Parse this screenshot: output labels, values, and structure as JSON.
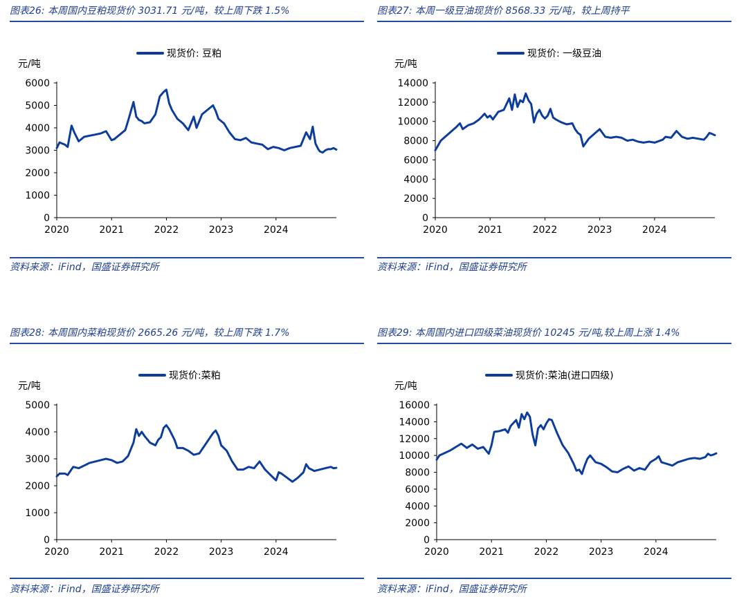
{
  "colors": {
    "accent": "#0d3d9c",
    "title": "#1f3f8f",
    "rule": "#1f4e9e"
  },
  "source_label": "资料来源：iFind，国盛证券研究所",
  "chart_data": [
    {
      "type": "line",
      "title": "图表26:  本周国内豆粕现货价 3031.71 元/吨，较上周下跌 1.5%",
      "ylabel": "元/吨",
      "legend": "现货价:  豆粕",
      "ylim": [
        0,
        6000
      ],
      "yticks": [
        0,
        1000,
        2000,
        3000,
        4000,
        5000,
        6000
      ],
      "xticks": [
        "2020",
        "2021",
        "2022",
        "2023",
        "2024"
      ],
      "xlim": [
        2020,
        2025.1
      ],
      "series": [
        {
          "name": "现货价: 豆粕",
          "x": [
            2020.0,
            2020.05,
            2020.15,
            2020.2,
            2020.27,
            2020.32,
            2020.4,
            2020.5,
            2020.6,
            2020.7,
            2020.8,
            2020.9,
            2021.0,
            2021.05,
            2021.15,
            2021.25,
            2021.3,
            2021.4,
            2021.45,
            2021.5,
            2021.55,
            2021.6,
            2021.7,
            2021.8,
            2021.88,
            2021.95,
            2022.0,
            2022.05,
            2022.1,
            2022.15,
            2022.2,
            2022.3,
            2022.4,
            2022.5,
            2022.55,
            2022.6,
            2022.65,
            2022.75,
            2022.85,
            2022.9,
            2022.95,
            2023.05,
            2023.15,
            2023.25,
            2023.35,
            2023.45,
            2023.55,
            2023.65,
            2023.75,
            2023.85,
            2023.95,
            2024.05,
            2024.15,
            2024.25,
            2024.35,
            2024.45,
            2024.55,
            2024.62,
            2024.67,
            2024.72,
            2024.77,
            2024.8,
            2024.85,
            2024.9,
            2024.95,
            2025.0,
            2025.05,
            2025.1
          ],
          "values": [
            3100,
            3350,
            3250,
            3150,
            4100,
            3800,
            3400,
            3600,
            3650,
            3700,
            3750,
            3850,
            3450,
            3500,
            3700,
            3900,
            4300,
            5150,
            4500,
            4350,
            4300,
            4200,
            4250,
            4600,
            5400,
            5600,
            5700,
            5100,
            4800,
            4600,
            4400,
            4200,
            3900,
            4500,
            4000,
            4300,
            4600,
            4800,
            5000,
            4750,
            4400,
            4200,
            3800,
            3500,
            3450,
            3550,
            3350,
            3300,
            3250,
            3050,
            3150,
            3100,
            3000,
            3100,
            3150,
            3200,
            3800,
            3500,
            4050,
            3300,
            3050,
            2950,
            2900,
            3000,
            3050,
            3050,
            3100,
            3031
          ]
        }
      ]
    },
    {
      "type": "line",
      "title": "图表27:  本周一级豆油现货价 8568.33 元/吨，较上周持平",
      "ylabel": "元/吨",
      "legend": "现货价:  一级豆油",
      "ylim": [
        0,
        14000
      ],
      "yticks": [
        0,
        2000,
        4000,
        6000,
        8000,
        10000,
        12000,
        14000
      ],
      "xticks": [
        "2020",
        "2021",
        "2022",
        "2023",
        "2024"
      ],
      "xlim": [
        2020,
        2025.1
      ],
      "series": [
        {
          "name": "现货价: 一级豆油",
          "x": [
            2020.0,
            2020.05,
            2020.1,
            2020.2,
            2020.3,
            2020.38,
            2020.45,
            2020.5,
            2020.6,
            2020.7,
            2020.8,
            2020.9,
            2020.95,
            2021.0,
            2021.05,
            2021.15,
            2021.25,
            2021.35,
            2021.4,
            2021.45,
            2021.5,
            2021.55,
            2021.6,
            2021.65,
            2021.7,
            2021.75,
            2021.8,
            2021.85,
            2021.9,
            2021.95,
            2022.0,
            2022.05,
            2022.1,
            2022.15,
            2022.2,
            2022.3,
            2022.4,
            2022.5,
            2022.55,
            2022.6,
            2022.65,
            2022.7,
            2022.8,
            2022.9,
            2023.0,
            2023.1,
            2023.2,
            2023.3,
            2023.4,
            2023.5,
            2023.6,
            2023.7,
            2023.8,
            2023.9,
            2024.0,
            2024.1,
            2024.15,
            2024.2,
            2024.3,
            2024.4,
            2024.5,
            2024.6,
            2024.7,
            2024.8,
            2024.9,
            2024.95,
            2025.0,
            2025.05,
            2025.1
          ],
          "values": [
            7000,
            7500,
            8000,
            8500,
            9000,
            9400,
            9800,
            9200,
            9600,
            9800,
            10200,
            10800,
            10400,
            10600,
            10200,
            11000,
            11200,
            12400,
            11200,
            12800,
            11500,
            12200,
            12000,
            12900,
            12200,
            11800,
            9900,
            10800,
            11200,
            10600,
            10300,
            10600,
            11300,
            10400,
            10200,
            9900,
            9700,
            9800,
            9200,
            8800,
            8600,
            7400,
            8200,
            8700,
            9200,
            8400,
            8300,
            8400,
            8300,
            8000,
            8100,
            7900,
            7800,
            7900,
            7800,
            8000,
            8100,
            8400,
            8300,
            9000,
            8400,
            8200,
            8300,
            8200,
            8100,
            8400,
            8800,
            8700,
            8568
          ]
        }
      ]
    },
    {
      "type": "line",
      "title": "图表28:  本周国内菜粕现货价 2665.26 元/吨，较上周下跌 1.7%",
      "ylabel": "元/吨",
      "legend": "现货价:菜粕",
      "ylim": [
        0,
        5000
      ],
      "yticks": [
        0,
        1000,
        2000,
        3000,
        4000,
        5000
      ],
      "xticks": [
        "2020",
        "2021",
        "2022",
        "2023",
        "2024"
      ],
      "xlim": [
        2020,
        2025.1
      ],
      "series": [
        {
          "name": "现货价:菜粕",
          "x": [
            2020.0,
            2020.05,
            2020.15,
            2020.2,
            2020.3,
            2020.4,
            2020.5,
            2020.6,
            2020.7,
            2020.8,
            2020.9,
            2021.0,
            2021.1,
            2021.2,
            2021.3,
            2021.4,
            2021.45,
            2021.5,
            2021.55,
            2021.6,
            2021.7,
            2021.8,
            2021.85,
            2021.9,
            2021.95,
            2022.0,
            2022.05,
            2022.1,
            2022.15,
            2022.2,
            2022.3,
            2022.4,
            2022.5,
            2022.6,
            2022.7,
            2022.8,
            2022.85,
            2022.9,
            2022.95,
            2023.0,
            2023.1,
            2023.2,
            2023.3,
            2023.4,
            2023.5,
            2023.6,
            2023.7,
            2023.8,
            2023.9,
            2024.0,
            2024.05,
            2024.1,
            2024.2,
            2024.3,
            2024.4,
            2024.5,
            2024.55,
            2024.6,
            2024.7,
            2024.8,
            2024.9,
            2025.0,
            2025.05,
            2025.1
          ],
          "values": [
            2350,
            2450,
            2450,
            2400,
            2700,
            2650,
            2750,
            2850,
            2900,
            2950,
            3000,
            2950,
            2850,
            2900,
            3100,
            3600,
            4100,
            3850,
            4000,
            3850,
            3600,
            3500,
            3700,
            3800,
            4150,
            4250,
            4100,
            3900,
            3700,
            3400,
            3400,
            3300,
            3150,
            3200,
            3500,
            3800,
            3950,
            4050,
            3850,
            3500,
            3300,
            2900,
            2600,
            2600,
            2700,
            2650,
            2900,
            2600,
            2400,
            2200,
            2500,
            2450,
            2300,
            2150,
            2300,
            2500,
            2800,
            2650,
            2550,
            2600,
            2650,
            2700,
            2650,
            2665
          ]
        }
      ]
    },
    {
      "type": "line",
      "title": "图表29:  本周国内进口四级菜油现货价 10245 元/吨,较上周上涨 1.4%",
      "ylabel": "元/吨",
      "legend": "现货价:菜油(进口四级)",
      "ylim": [
        0,
        16000
      ],
      "yticks": [
        0,
        2000,
        4000,
        6000,
        8000,
        10000,
        12000,
        14000,
        16000
      ],
      "xticks": [
        "2020",
        "2021",
        "2022",
        "2023",
        "2024"
      ],
      "xlim": [
        2020,
        2025.1
      ],
      "series": [
        {
          "name": "现货价:菜油(进口四级)",
          "x": [
            2020.0,
            2020.05,
            2020.15,
            2020.25,
            2020.35,
            2020.45,
            2020.55,
            2020.65,
            2020.75,
            2020.85,
            2020.95,
            2021.0,
            2021.05,
            2021.15,
            2021.25,
            2021.3,
            2021.35,
            2021.45,
            2021.5,
            2021.55,
            2021.6,
            2021.65,
            2021.7,
            2021.75,
            2021.8,
            2021.85,
            2021.9,
            2021.95,
            2022.0,
            2022.05,
            2022.1,
            2022.2,
            2022.3,
            2022.4,
            2022.5,
            2022.55,
            2022.6,
            2022.65,
            2022.7,
            2022.75,
            2022.8,
            2022.9,
            2023.0,
            2023.1,
            2023.2,
            2023.3,
            2023.4,
            2023.5,
            2023.6,
            2023.7,
            2023.8,
            2023.9,
            2024.0,
            2024.05,
            2024.1,
            2024.2,
            2024.3,
            2024.4,
            2024.5,
            2024.6,
            2024.7,
            2024.8,
            2024.9,
            2024.95,
            2025.0,
            2025.05,
            2025.1
          ],
          "values": [
            9500,
            10000,
            10300,
            10600,
            11000,
            11400,
            10900,
            11300,
            10800,
            11000,
            10200,
            11200,
            12800,
            12900,
            13100,
            12700,
            13500,
            14200,
            13300,
            14900,
            14300,
            15100,
            14600,
            12500,
            11200,
            13200,
            13600,
            13100,
            13800,
            14300,
            14200,
            12600,
            11200,
            10300,
            9000,
            8200,
            8300,
            7800,
            8800,
            9600,
            10000,
            9200,
            9000,
            8600,
            8100,
            8000,
            8400,
            8700,
            8200,
            8500,
            8300,
            9200,
            9600,
            9900,
            9200,
            9000,
            8800,
            9200,
            9400,
            9600,
            9700,
            9600,
            9800,
            10200,
            10000,
            10100,
            10245
          ]
        }
      ]
    }
  ]
}
